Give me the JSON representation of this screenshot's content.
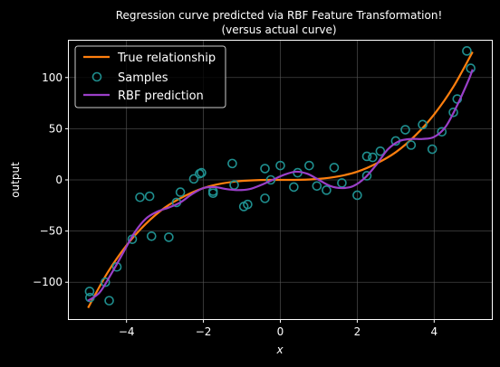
{
  "chart_data": {
    "type": "line",
    "title_line1": "Regression curve predicted via RBF Feature Transformation!",
    "title_line2": "(versus actual curve)",
    "xlabel": "x",
    "ylabel": "output",
    "xlim": [
      -5.5,
      5.5
    ],
    "ylim": [
      -136,
      136
    ],
    "x_ticks": [
      -4,
      -2,
      0,
      2,
      4
    ],
    "x_tick_labels": [
      "−4",
      "−2",
      "0",
      "2",
      "4"
    ],
    "y_ticks": [
      -100,
      -50,
      0,
      50,
      100
    ],
    "y_tick_labels": [
      "−100",
      "−50",
      "0",
      "50",
      "100"
    ],
    "grid": true,
    "legend_position": "top-left",
    "legend": {
      "true_label": "True relationship",
      "samples_label": "Samples",
      "rbf_label": "RBF prediction"
    },
    "colors": {
      "true": "#ff7f0e",
      "samples": "#1f8f8f",
      "rbf": "#9a3fc8",
      "grid": "#555555"
    },
    "series": [
      {
        "name": "True relationship",
        "x": [
          -5.0,
          -4.5,
          -4.0,
          -3.5,
          -3.0,
          -2.5,
          -2.0,
          -1.5,
          -1.0,
          -0.5,
          0.0,
          0.5,
          1.0,
          1.5,
          2.0,
          2.5,
          3.0,
          3.5,
          4.0,
          4.5,
          5.0
        ],
        "y": [
          -125,
          -91,
          -64,
          -43,
          -27,
          -16,
          -8,
          -3.4,
          -1,
          -0.1,
          0,
          0.1,
          1,
          3.4,
          8,
          16,
          27,
          43,
          64,
          91,
          125
        ]
      },
      {
        "name": "RBF prediction",
        "x": [
          -5.0,
          -4.7,
          -4.4,
          -4.1,
          -3.8,
          -3.5,
          -3.2,
          -2.9,
          -2.6,
          -2.3,
          -2.0,
          -1.7,
          -1.4,
          -1.1,
          -0.8,
          -0.5,
          -0.2,
          0.1,
          0.4,
          0.7,
          1.0,
          1.3,
          1.6,
          1.9,
          2.2,
          2.5,
          2.8,
          3.1,
          3.4,
          3.7,
          4.0,
          4.3,
          4.6,
          4.9,
          5.0
        ],
        "y": [
          -118,
          -110,
          -92,
          -72,
          -52,
          -38,
          -31,
          -27,
          -22,
          -14,
          -8,
          -7,
          -9,
          -10,
          -9,
          -5,
          0,
          5,
          8,
          6,
          0,
          -6,
          -8,
          -6,
          2,
          15,
          30,
          38,
          40,
          40,
          42,
          52,
          73,
          98,
          108
        ]
      }
    ],
    "samples": {
      "name": "Samples",
      "x": [
        -4.96,
        -4.95,
        -4.55,
        -4.45,
        -4.25,
        -3.85,
        -3.65,
        -3.4,
        -3.35,
        -2.9,
        -2.7,
        -2.6,
        -2.25,
        -2.1,
        -2.05,
        -1.75,
        -1.75,
        -1.25,
        -1.2,
        -0.95,
        -0.85,
        -0.4,
        -0.4,
        -0.25,
        0.0,
        0.35,
        0.45,
        0.75,
        0.95,
        1.2,
        1.4,
        1.6,
        2.0,
        2.25,
        2.25,
        2.4,
        2.6,
        3.0,
        3.25,
        3.4,
        3.7,
        3.95,
        4.2,
        4.5,
        4.6,
        4.85,
        4.95
      ],
      "y": [
        -109,
        -115,
        -100,
        -118,
        -85,
        -58,
        -17,
        -16,
        -55,
        -56,
        -22,
        -12,
        1,
        6,
        7,
        -13,
        -11,
        16,
        -5,
        -26,
        -24,
        11,
        -18,
        0,
        14,
        -7,
        7,
        14,
        -6,
        -10,
        12,
        -3,
        -15,
        4,
        23,
        22,
        28,
        38,
        49,
        34,
        54,
        30,
        47,
        66,
        79,
        126,
        109
      ]
    }
  }
}
